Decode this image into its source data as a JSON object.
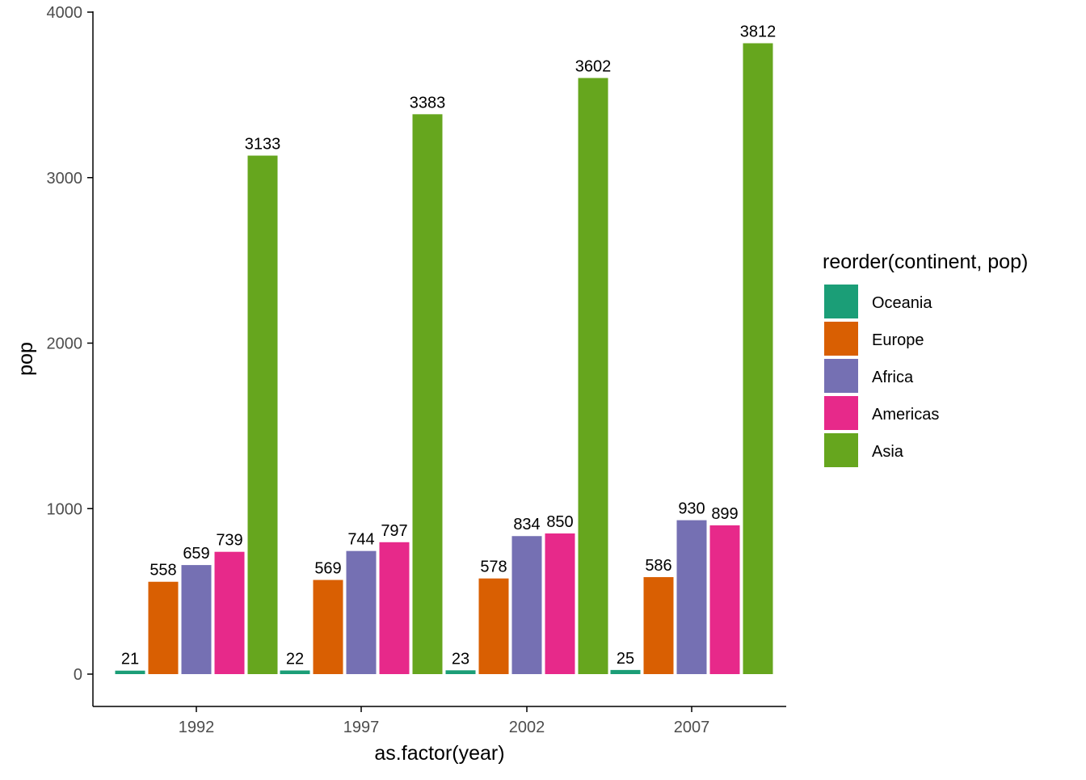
{
  "chart_data": {
    "type": "bar",
    "categories": [
      "1992",
      "1997",
      "2002",
      "2007"
    ],
    "series": [
      {
        "name": "Oceania",
        "color": "#1b9e77",
        "values": [
          21,
          22,
          23,
          25
        ]
      },
      {
        "name": "Europe",
        "color": "#d95f02",
        "values": [
          558,
          569,
          578,
          586
        ]
      },
      {
        "name": "Africa",
        "color": "#7570b3",
        "values": [
          659,
          744,
          834,
          930
        ]
      },
      {
        "name": "Americas",
        "color": "#e7298a",
        "values": [
          739,
          797,
          850,
          899
        ]
      },
      {
        "name": "Asia",
        "color": "#66a61e",
        "values": [
          3133,
          3383,
          3602,
          3812
        ]
      }
    ],
    "xlabel": "as.factor(year)",
    "ylabel": "pop",
    "ylim": [
      0,
      4000
    ],
    "yticks": [
      0,
      1000,
      2000,
      3000,
      4000
    ],
    "legend": {
      "title": "reorder(continent, pop)",
      "position": "right"
    },
    "grid": false,
    "data_labels": true
  }
}
